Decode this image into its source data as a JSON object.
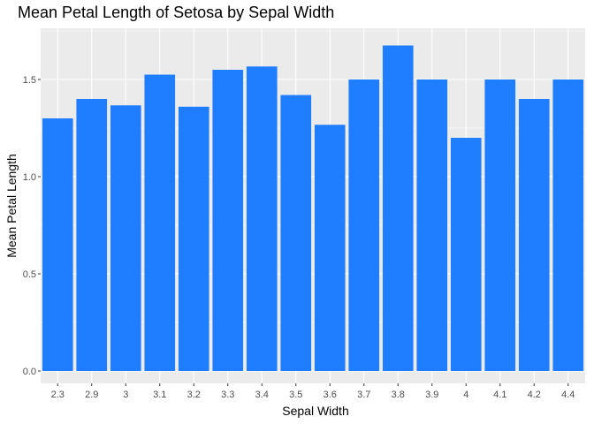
{
  "chart_data": {
    "type": "bar",
    "title": "Mean Petal Length of Setosa by Sepal Width",
    "xlabel": "Sepal Width",
    "ylabel": "Mean Petal Length",
    "categories": [
      "2.3",
      "2.9",
      "3",
      "3.1",
      "3.2",
      "3.3",
      "3.4",
      "3.5",
      "3.6",
      "3.7",
      "3.8",
      "3.9",
      "4",
      "4.1",
      "4.2",
      "4.4"
    ],
    "values": [
      1.3,
      1.4,
      1.367,
      1.525,
      1.36,
      1.55,
      1.567,
      1.42,
      1.267,
      1.5,
      1.675,
      1.5,
      1.2,
      1.5,
      1.4,
      1.5
    ],
    "ylim": [
      0,
      1.75
    ],
    "yticks": [
      0.0,
      0.5,
      1.0,
      1.5
    ],
    "ytick_labels": [
      "0.0",
      "0.5",
      "1.0",
      "1.5"
    ],
    "grid": true,
    "bar_color": "#1f7dff",
    "panel_color": "#ebebeb",
    "grid_color": "#ffffff"
  }
}
